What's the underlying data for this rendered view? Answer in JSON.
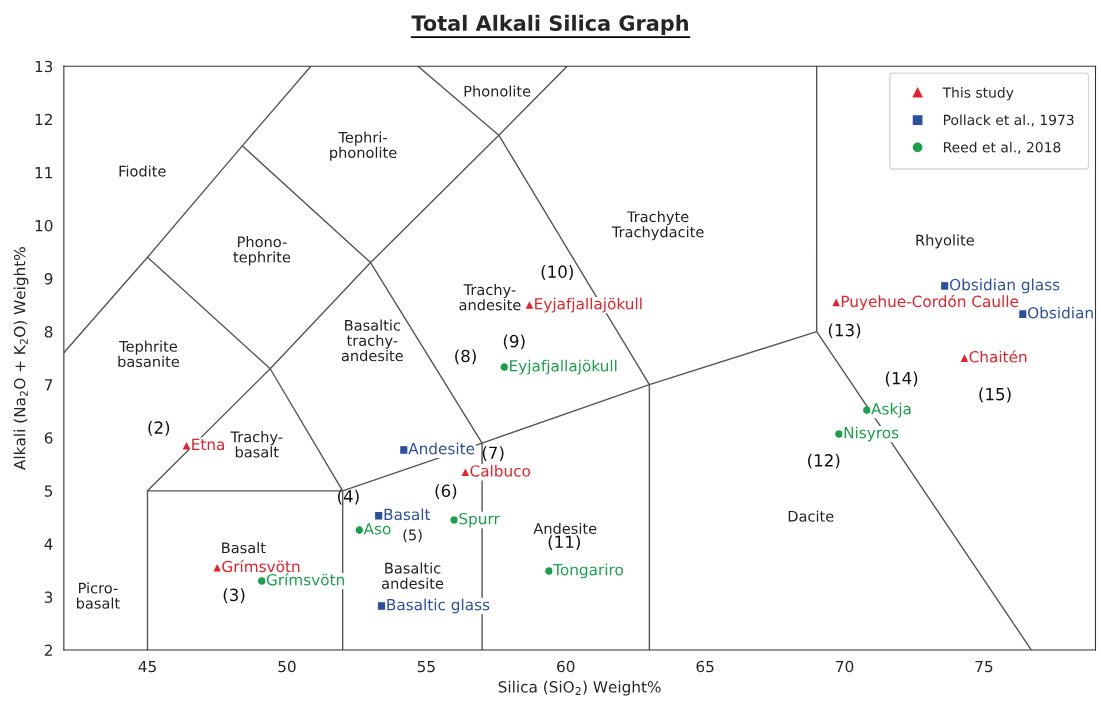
{
  "chart_data": {
    "type": "scatter",
    "title": "Total Alkali Silica Graph",
    "xlabel": "Silica (SiO$_{2}$) Weight%",
    "ylabel": "Alkali (Na$_{2}$O + K$_{2}$O) Weight%",
    "xlim": [
      42,
      79
    ],
    "ylim": [
      2,
      13
    ],
    "xticks": [
      45,
      50,
      55,
      60,
      65,
      70,
      75
    ],
    "yticks": [
      2,
      3,
      4,
      5,
      6,
      7,
      8,
      9,
      10,
      11,
      12,
      13
    ],
    "grid": false,
    "legend": "top right",
    "series": [
      {
        "type": "line",
        "color": "#555555",
        "x": [
          45,
          45,
          52,
          57,
          63,
          69,
          69,
          null,
          52,
          52,
          null,
          57,
          57,
          null,
          63,
          63,
          null,
          69,
          76.7,
          null,
          45,
          49.4,
          53,
          57.6,
          60.05,
          null,
          49.4,
          52,
          null,
          53,
          57,
          null,
          57.6,
          63,
          null,
          54.7,
          57.6,
          null,
          42,
          45,
          48.4,
          50.86,
          null,
          45,
          49.4,
          null,
          48.4,
          53
        ],
        "values": [
          2,
          5,
          5,
          5.9,
          7,
          8,
          13,
          null,
          2,
          5,
          null,
          2,
          5.9,
          null,
          2,
          7,
          null,
          8,
          2,
          null,
          5,
          7.3,
          9.3,
          11.7,
          13,
          null,
          7.3,
          5,
          null,
          9.3,
          5.9,
          null,
          11.7,
          7,
          null,
          13,
          11.7,
          null,
          7.6,
          9.4,
          11.5,
          13,
          null,
          9.4,
          7.3,
          null,
          11.5,
          9.3
        ]
      },
      {
        "name": "This study",
        "color": "#e8202a",
        "marker": "triangle",
        "x": [
          46.4,
          47.5,
          56.4,
          58.7,
          69.7,
          74.3
        ],
        "values": [
          5.85,
          3.55,
          5.35,
          8.5,
          8.55,
          7.5
        ],
        "value_labels": [
          "Etna",
          "Grímsvötn",
          "Calbuco",
          "Eyjafjallajökull",
          "Puyehue-Cordón Caulle",
          "Chaitén"
        ]
      },
      {
        "name": "Pollack et al., 1973",
        "color": "#2c4fa0",
        "marker": "square",
        "x": [
          54.2,
          53.3,
          53.4,
          73.6,
          76.4
        ],
        "values": [
          5.77,
          4.53,
          2.83,
          8.86,
          8.33
        ],
        "value_labels": [
          "Andesite",
          "Basalt",
          "Basaltic glass",
          "Obsidian glass",
          "Obsidian"
        ]
      },
      {
        "name": "Reed et al., 2018",
        "color": "#1aa04a",
        "marker": "circle",
        "x": [
          49.1,
          52.6,
          56.0,
          59.4,
          57.8,
          70.8,
          69.8
        ],
        "values": [
          3.3,
          4.26,
          4.45,
          3.49,
          7.33,
          6.52,
          6.07
        ],
        "value_labels": [
          "Grímsvötn",
          "Aso",
          "Spurr",
          "Tongariro",
          "Eyjafjallajökull",
          "Askja",
          "Nisyros"
        ]
      }
    ],
    "annotations": [
      "Fiodite",
      "Tephri-\nphonolite",
      "Phonolite",
      "Phono-\ntephrite",
      "Trachyte\nTrachydacite",
      "Rhyolite",
      "Tephrite\nbasanite",
      "Trachy-\nbasalt",
      "Basaltic\ntrachy-\nandesite",
      "Trachy-\nandesite",
      "Basalt",
      "Basaltic\nandesite",
      "Andesite",
      "Dacite",
      "Picro-\nbasalt",
      {
        "text": "(2)",
        "x": 46.4,
        "y": 5.85
      },
      {
        "text": "(3)",
        "x": 49.1,
        "y": 3.3
      },
      {
        "text": "(4)",
        "x": 53.3,
        "y": 4.53
      },
      "(5)",
      {
        "text": "(6)",
        "x": 56.0,
        "y": 4.45
      },
      {
        "text": "(7)",
        "x": 56.4,
        "y": 5.35
      },
      {
        "text": "(8)",
        "x": 57.8,
        "y": 7.33
      },
      {
        "text": "(9)",
        "x": 58.7,
        "y": 8.5
      },
      {
        "text": "(10)",
        "x": 58.7,
        "y": 8.5
      },
      {
        "text": "(11)",
        "x": 59.4,
        "y": 3.49
      },
      {
        "text": "(12)",
        "x": 69.8,
        "y": 6.07
      },
      {
        "text": "(13)",
        "x": 69.7,
        "y": 8.55
      },
      {
        "text": "(14)",
        "x": 70.8,
        "y": 6.52
      },
      {
        "text": "(15)",
        "x": 74.3,
        "y": 7.5
      }
    ]
  }
}
